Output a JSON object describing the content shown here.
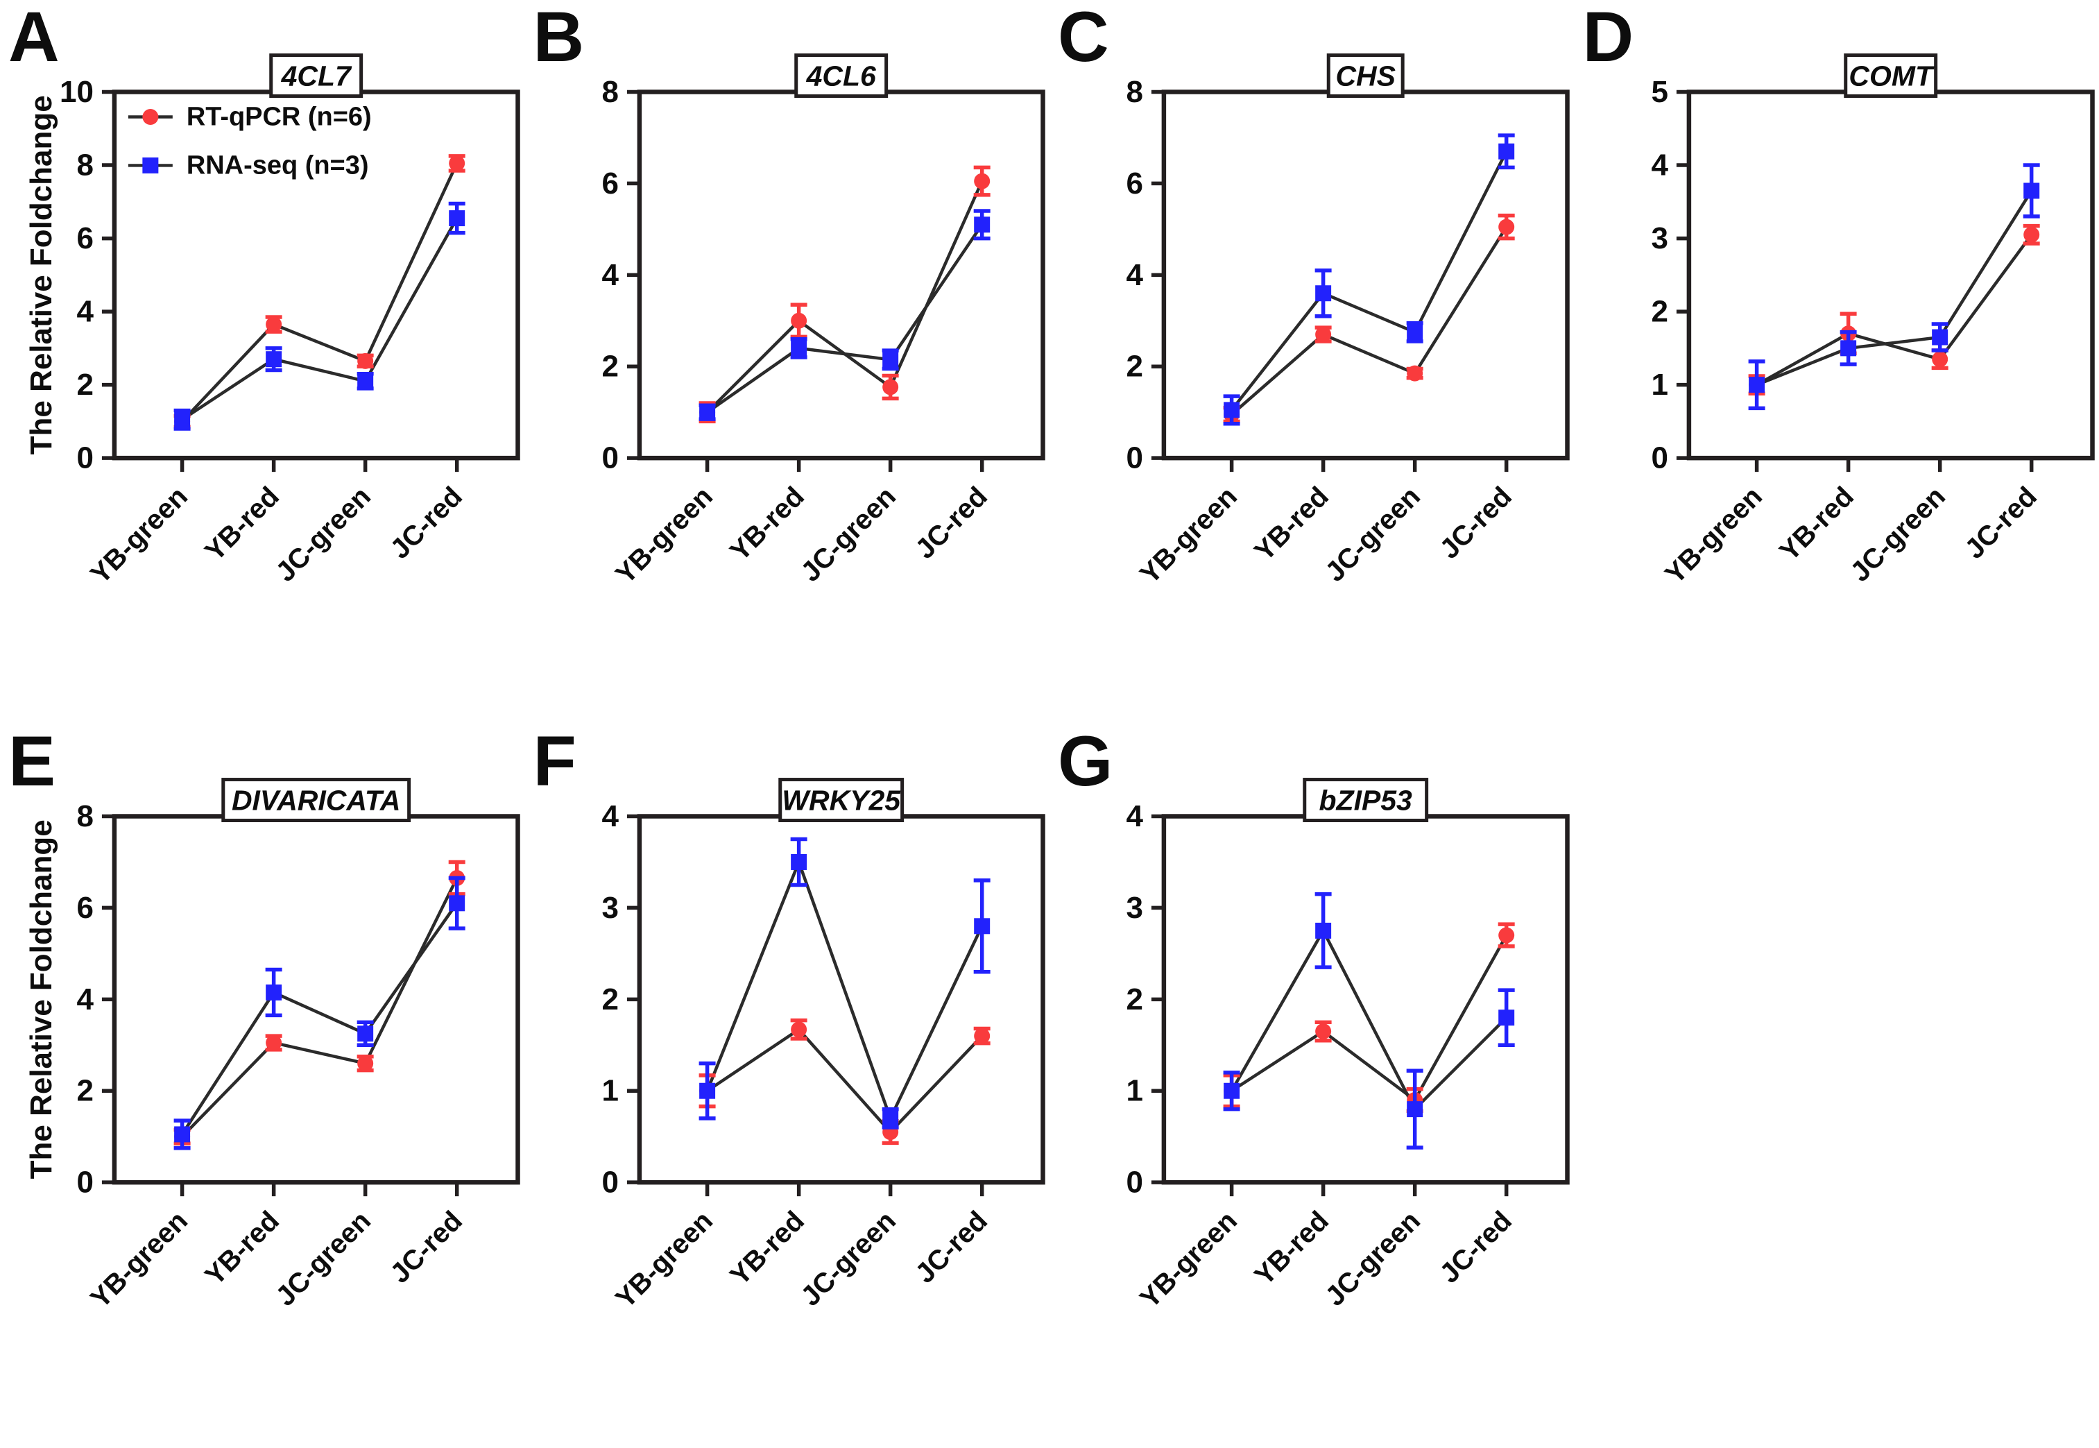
{
  "figure": {
    "ylabel": "The Relative Foldchange",
    "categories": [
      "YB-green",
      "YB-red",
      "JC-green",
      "JC-red"
    ],
    "series_meta": [
      {
        "name": "RT-qPCR (n=6)",
        "color": "#f93b3d",
        "marker": "circle"
      },
      {
        "name": "RNA-seq (n=3)",
        "color": "#2222fc",
        "marker": "square"
      }
    ],
    "axis_color": "#231f20",
    "line_color": "#2b2b2b"
  },
  "chart_data": [
    {
      "panel": "A",
      "title": "4CL7",
      "type": "line",
      "categories": [
        "YB-green",
        "YB-red",
        "JC-green",
        "JC-red"
      ],
      "ylim": [
        0,
        10
      ],
      "yticks": [
        0,
        2,
        4,
        6,
        8,
        10
      ],
      "show_ylabel": true,
      "show_legend": true,
      "series": [
        {
          "name": "RT-qPCR (n=6)",
          "values": [
            1.0,
            3.65,
            2.65,
            8.05
          ],
          "errors": [
            0.15,
            0.2,
            0.15,
            0.2
          ]
        },
        {
          "name": "RNA-seq (n=3)",
          "values": [
            1.05,
            2.7,
            2.1,
            6.55
          ],
          "errors": [
            0.25,
            0.3,
            0.2,
            0.4
          ]
        }
      ]
    },
    {
      "panel": "B",
      "title": "4CL6",
      "type": "line",
      "categories": [
        "YB-green",
        "YB-red",
        "JC-green",
        "JC-red"
      ],
      "ylim": [
        0,
        8
      ],
      "yticks": [
        0,
        2,
        4,
        6,
        8
      ],
      "show_ylabel": false,
      "show_legend": false,
      "series": [
        {
          "name": "RT-qPCR (n=6)",
          "values": [
            1.0,
            3.0,
            1.55,
            6.05
          ],
          "errors": [
            0.2,
            0.35,
            0.25,
            0.3
          ]
        },
        {
          "name": "RNA-seq (n=3)",
          "values": [
            1.0,
            2.4,
            2.15,
            5.1
          ],
          "errors": [
            0.15,
            0.2,
            0.2,
            0.3
          ]
        }
      ]
    },
    {
      "panel": "C",
      "title": "CHS",
      "type": "line",
      "categories": [
        "YB-green",
        "YB-red",
        "JC-green",
        "JC-red"
      ],
      "ylim": [
        0,
        8
      ],
      "yticks": [
        0,
        2,
        4,
        6,
        8
      ],
      "show_ylabel": false,
      "show_legend": false,
      "series": [
        {
          "name": "RT-qPCR (n=6)",
          "values": [
            0.95,
            2.7,
            1.85,
            5.05
          ],
          "errors": [
            0.15,
            0.15,
            0.1,
            0.25
          ]
        },
        {
          "name": "RNA-seq (n=3)",
          "values": [
            1.05,
            3.6,
            2.75,
            6.7
          ],
          "errors": [
            0.3,
            0.5,
            0.2,
            0.35
          ]
        }
      ]
    },
    {
      "panel": "D",
      "title": "COMT",
      "type": "line",
      "categories": [
        "YB-green",
        "YB-red",
        "JC-green",
        "JC-red"
      ],
      "ylim": [
        0,
        5
      ],
      "yticks": [
        0,
        1,
        2,
        3,
        4,
        5
      ],
      "show_ylabel": false,
      "show_legend": false,
      "series": [
        {
          "name": "RT-qPCR (n=6)",
          "values": [
            1.0,
            1.7,
            1.35,
            3.05
          ],
          "errors": [
            0.12,
            0.27,
            0.12,
            0.12
          ]
        },
        {
          "name": "RNA-seq (n=3)",
          "values": [
            1.0,
            1.5,
            1.65,
            3.65
          ],
          "errors": [
            0.32,
            0.22,
            0.18,
            0.35
          ]
        }
      ]
    },
    {
      "panel": "E",
      "title": "DIVARICATA",
      "type": "line",
      "categories": [
        "YB-green",
        "YB-red",
        "JC-green",
        "JC-red"
      ],
      "ylim": [
        0,
        8
      ],
      "yticks": [
        0,
        2,
        4,
        6,
        8
      ],
      "show_ylabel": true,
      "show_legend": false,
      "series": [
        {
          "name": "RT-qPCR (n=6)",
          "values": [
            1.0,
            3.05,
            2.6,
            6.65
          ],
          "errors": [
            0.15,
            0.15,
            0.15,
            0.35
          ]
        },
        {
          "name": "RNA-seq (n=3)",
          "values": [
            1.05,
            4.15,
            3.25,
            6.1
          ],
          "errors": [
            0.3,
            0.5,
            0.25,
            0.55
          ]
        }
      ]
    },
    {
      "panel": "F",
      "title": "WRKY25",
      "type": "line",
      "categories": [
        "YB-green",
        "YB-red",
        "JC-green",
        "JC-red"
      ],
      "ylim": [
        0,
        4
      ],
      "yticks": [
        0,
        1,
        2,
        3,
        4
      ],
      "show_ylabel": false,
      "show_legend": false,
      "series": [
        {
          "name": "RT-qPCR (n=6)",
          "values": [
            1.0,
            1.67,
            0.55,
            1.6
          ],
          "errors": [
            0.17,
            0.1,
            0.12,
            0.08
          ]
        },
        {
          "name": "RNA-seq (n=3)",
          "values": [
            1.0,
            3.5,
            0.7,
            2.8
          ],
          "errors": [
            0.3,
            0.25,
            0.1,
            0.5
          ]
        }
      ]
    },
    {
      "panel": "G",
      "title": "bZIP53",
      "type": "line",
      "categories": [
        "YB-green",
        "YB-red",
        "JC-green",
        "JC-red"
      ],
      "ylim": [
        0,
        4
      ],
      "yticks": [
        0,
        1,
        2,
        3,
        4
      ],
      "show_ylabel": false,
      "show_legend": false,
      "series": [
        {
          "name": "RT-qPCR (n=6)",
          "values": [
            1.0,
            1.65,
            0.9,
            2.7
          ],
          "errors": [
            0.17,
            0.1,
            0.12,
            0.12
          ]
        },
        {
          "name": "RNA-seq (n=3)",
          "values": [
            1.0,
            2.75,
            0.8,
            1.8
          ],
          "errors": [
            0.2,
            0.4,
            0.42,
            0.3
          ]
        }
      ]
    }
  ]
}
